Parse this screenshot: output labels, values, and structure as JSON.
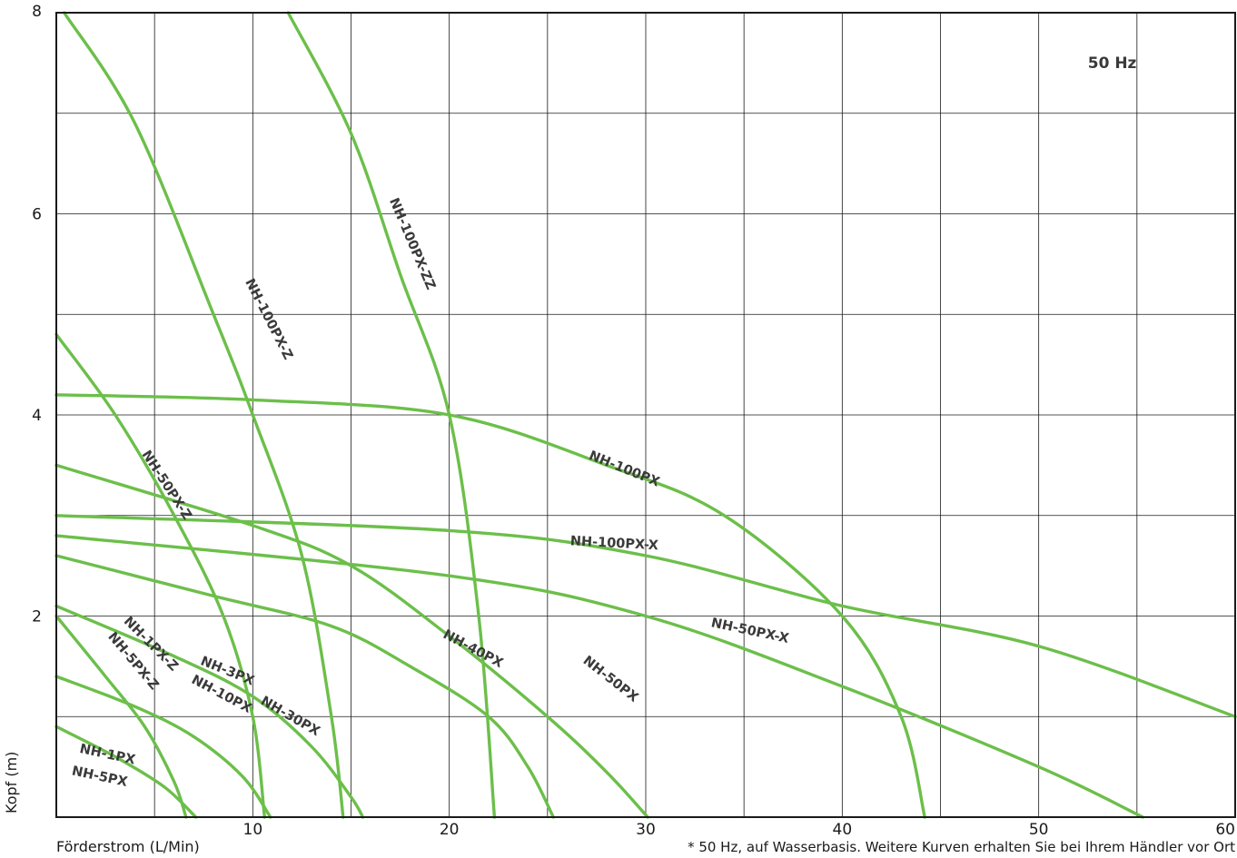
{
  "chart_data": {
    "type": "line",
    "xlabel": "Förderstrom (L/Min)",
    "ylabel": "Kopf (m)",
    "annotation": "50 Hz",
    "footnote": "* 50 Hz, auf Wasserbasis. Weitere Kurven erhalten Sie bei Ihrem Händler vor Ort",
    "xlim": [
      0,
      60
    ],
    "ylim": [
      0,
      8
    ],
    "xticks": [
      "10",
      "20",
      "30",
      "40",
      "50",
      "60"
    ],
    "yticks": [
      "2",
      "4",
      "6",
      "8"
    ],
    "grid": true,
    "series_color": "#6cbf4a",
    "series": [
      {
        "name": "NH-100PX-ZZ",
        "x": [
          11.8,
          15,
          17.5,
          20,
          21.5,
          22.3
        ],
        "y": [
          8,
          6.8,
          5.4,
          4.0,
          2.0,
          0
        ]
      },
      {
        "name": "NH-100PX-Z",
        "x": [
          0.4,
          4,
          8,
          10,
          12.5,
          14,
          14.6
        ],
        "y": [
          8,
          6.9,
          5.0,
          4.0,
          2.6,
          1.0,
          0
        ]
      },
      {
        "name": "NH-50PX-Z",
        "x": [
          0,
          3,
          6,
          8.5,
          10,
          10.6
        ],
        "y": [
          4.8,
          4.0,
          3.0,
          2.0,
          1.0,
          0
        ]
      },
      {
        "name": "NH-100PX",
        "x": [
          0,
          10,
          20,
          28,
          34,
          40,
          43,
          44.2
        ],
        "y": [
          4.2,
          4.15,
          4.0,
          3.5,
          3.0,
          2.0,
          1.0,
          0
        ]
      },
      {
        "name": "NH-100PX-X",
        "x": [
          0,
          20,
          30,
          40,
          50,
          60
        ],
        "y": [
          3.0,
          2.85,
          2.6,
          2.1,
          1.7,
          1.0
        ]
      },
      {
        "name": "NH-50PX-X",
        "x": [
          0,
          20,
          30,
          40,
          50,
          55.3
        ],
        "y": [
          2.8,
          2.4,
          2.0,
          1.3,
          0.5,
          0
        ]
      },
      {
        "name": "NH-50PX",
        "x": [
          0,
          10,
          15,
          20,
          25,
          28,
          30.1
        ],
        "y": [
          3.5,
          2.9,
          2.5,
          1.8,
          1.0,
          0.45,
          0
        ]
      },
      {
        "name": "NH-40PX",
        "x": [
          0,
          8,
          14,
          18,
          22,
          24,
          25.3
        ],
        "y": [
          2.6,
          2.2,
          1.9,
          1.5,
          1.0,
          0.5,
          0
        ]
      },
      {
        "name": "NH-30PX",
        "x": [
          0,
          6,
          10,
          13,
          15,
          15.6
        ],
        "y": [
          2.1,
          1.6,
          1.2,
          0.7,
          0.2,
          0
        ]
      },
      {
        "name": "NH-3PX / NH-10PX",
        "x": [
          0,
          4,
          7,
          9.5,
          10.9
        ],
        "y": [
          1.4,
          1.1,
          0.8,
          0.4,
          0
        ]
      },
      {
        "name": "NH-1PX-Z / NH-5PX-Z",
        "x": [
          0,
          2.5,
          4.5,
          6,
          6.6
        ],
        "y": [
          2.0,
          1.4,
          0.9,
          0.35,
          0
        ]
      },
      {
        "name": "NH-1PX / NH-5PX",
        "x": [
          0,
          3,
          5.5,
          7.1
        ],
        "y": [
          0.9,
          0.6,
          0.3,
          0
        ]
      }
    ],
    "labels": [
      {
        "text": "NH-100PX-ZZ",
        "x": 18.1,
        "y": 5.7,
        "angle": 67
      },
      {
        "text": "NH-100PX-Z",
        "x": 10.8,
        "y": 4.95,
        "angle": 63
      },
      {
        "text": "NH-50PX-Z",
        "x": 5.6,
        "y": 3.3,
        "angle": 57
      },
      {
        "text": "NH-100PX",
        "x": 28.9,
        "y": 3.46,
        "angle": 22
      },
      {
        "text": "NH-100PX-X",
        "x": 28.4,
        "y": 2.72,
        "angle": 3
      },
      {
        "text": "NH-50PX-X",
        "x": 35.3,
        "y": 1.85,
        "angle": 12
      },
      {
        "text": "NH-50PX",
        "x": 28.2,
        "y": 1.37,
        "angle": 38
      },
      {
        "text": "NH-40PX",
        "x": 21.2,
        "y": 1.67,
        "angle": 28
      },
      {
        "text": "NH-30PX",
        "x": 11.9,
        "y": 1.0,
        "angle": 30
      },
      {
        "text": "NH-3PX",
        "x": 8.7,
        "y": 1.45,
        "angle": 22
      },
      {
        "text": "NH-10PX",
        "x": 8.4,
        "y": 1.22,
        "angle": 28
      },
      {
        "text": "NH-1PX-Z",
        "x": 4.8,
        "y": 1.72,
        "angle": 45
      },
      {
        "text": "NH-5PX-Z",
        "x": 3.9,
        "y": 1.55,
        "angle": 50
      },
      {
        "text": "NH-1PX",
        "x": 2.6,
        "y": 0.62,
        "angle": 12
      },
      {
        "text": "NH-5PX",
        "x": 2.2,
        "y": 0.4,
        "angle": 12
      }
    ]
  }
}
